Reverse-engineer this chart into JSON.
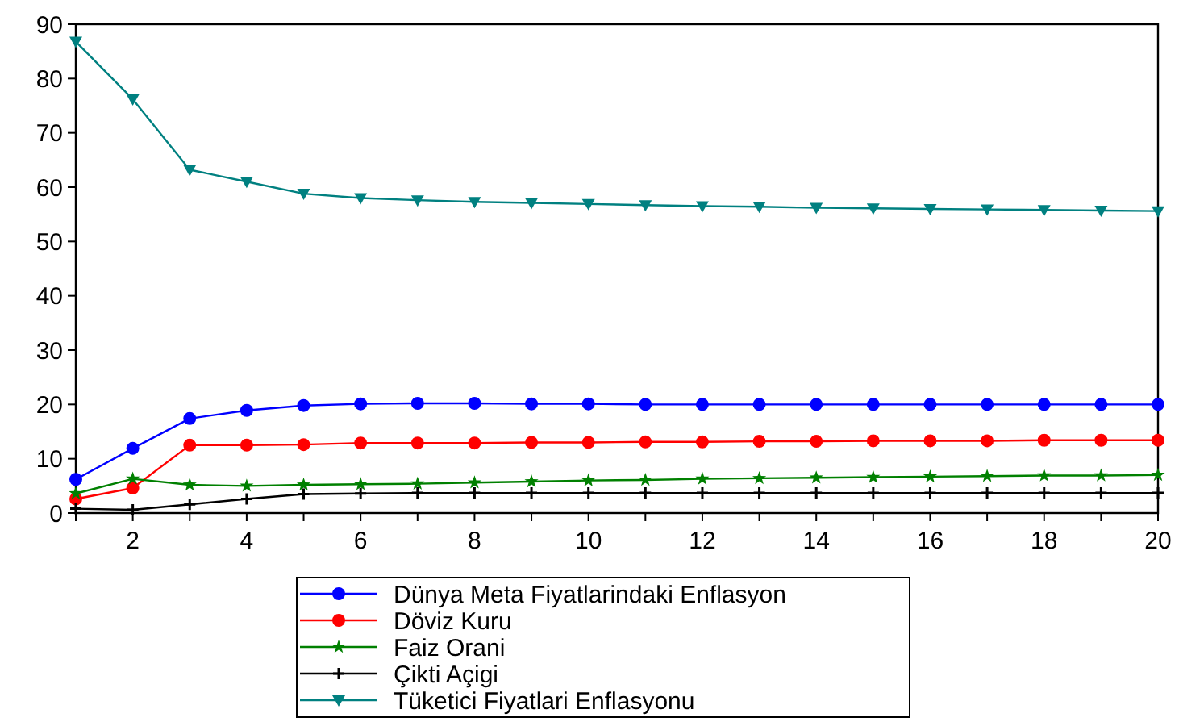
{
  "chart_data": {
    "type": "line",
    "x": [
      1,
      2,
      3,
      4,
      5,
      6,
      7,
      8,
      9,
      10,
      11,
      12,
      13,
      14,
      15,
      16,
      17,
      18,
      19,
      20
    ],
    "xlim": [
      1,
      20
    ],
    "ylim": [
      0,
      90
    ],
    "xticks": [
      {
        "value": 1,
        "label": null
      },
      2,
      {
        "value": 3,
        "label": null
      },
      4,
      {
        "value": 5,
        "label": null
      },
      6,
      {
        "value": 7,
        "label": null
      },
      8,
      {
        "value": 9,
        "label": null
      },
      10,
      {
        "value": 11,
        "label": null
      },
      12,
      {
        "value": 13,
        "label": null
      },
      14,
      {
        "value": 15,
        "label": null
      },
      16,
      {
        "value": 17,
        "label": null
      },
      18,
      {
        "value": 19,
        "label": null
      },
      20
    ],
    "yticks": [
      0,
      10,
      20,
      30,
      40,
      50,
      60,
      70,
      80,
      90
    ],
    "grid": false,
    "legend": "bottom",
    "line_style": "solid",
    "series": [
      {
        "name": "Dünya Meta Fiyatlarindaki Enflasyon",
        "color": "#0000ff",
        "marker": "circle",
        "values": [
          6.2,
          11.9,
          17.4,
          18.9,
          19.8,
          20.1,
          20.2,
          20.2,
          20.1,
          20.1,
          20.0,
          20.0,
          20.0,
          20.0,
          20.0,
          20.0,
          20.0,
          20.0,
          20.0,
          20.0
        ]
      },
      {
        "name": "Döviz Kuru",
        "color": "#ff0000",
        "marker": "circle",
        "values": [
          2.6,
          4.6,
          12.5,
          12.5,
          12.6,
          12.9,
          12.9,
          12.9,
          13.0,
          13.0,
          13.1,
          13.1,
          13.2,
          13.2,
          13.3,
          13.3,
          13.3,
          13.4,
          13.4,
          13.4
        ]
      },
      {
        "name": "Faiz Orani",
        "color": "#008000",
        "marker": "star",
        "values": [
          3.6,
          6.3,
          5.2,
          5.0,
          5.2,
          5.3,
          5.4,
          5.6,
          5.8,
          6.0,
          6.1,
          6.3,
          6.4,
          6.5,
          6.6,
          6.7,
          6.8,
          6.9,
          6.9,
          7.0
        ]
      },
      {
        "name": "Çikti Açigi",
        "color": "#000000",
        "marker": "cross",
        "values": [
          0.8,
          0.6,
          1.6,
          2.6,
          3.5,
          3.6,
          3.7,
          3.7,
          3.7,
          3.7,
          3.7,
          3.7,
          3.7,
          3.7,
          3.7,
          3.7,
          3.7,
          3.7,
          3.7,
          3.7
        ]
      },
      {
        "name": "Tüketici Fiyatlari Enflasyonu",
        "color": "#008080",
        "marker": "triangle",
        "values": [
          86.8,
          76.2,
          63.2,
          61.0,
          58.8,
          58.0,
          57.6,
          57.3,
          57.1,
          56.9,
          56.7,
          56.5,
          56.4,
          56.2,
          56.1,
          56.0,
          55.9,
          55.8,
          55.7,
          55.6
        ]
      }
    ]
  }
}
